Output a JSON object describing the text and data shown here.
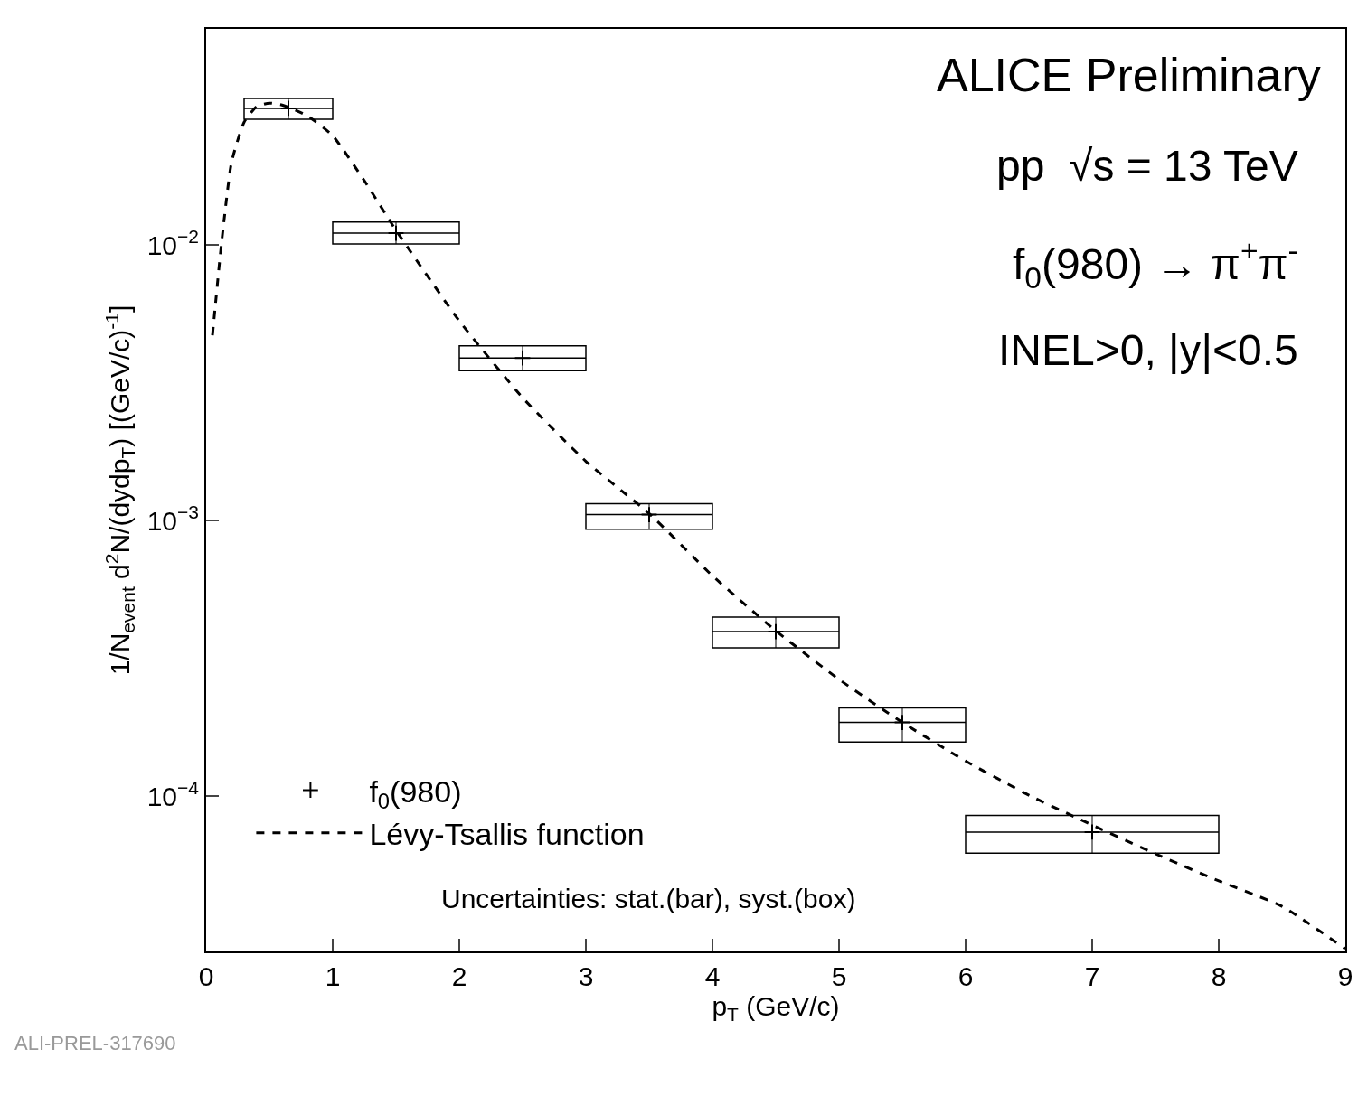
{
  "chart_data": {
    "type": "scatter",
    "xlabel": "p$_{T}$ (GeV/c)",
    "ylabel": "1/N$_{event}$ d$^{2}$N/(dydp$_{T}$) [(GeV/c)$^{-1}$]",
    "log": "y",
    "xlim": [
      0,
      9
    ],
    "ylim": [
      2.73e-05,
      0.0608
    ],
    "xticks": [
      0,
      1,
      2,
      3,
      4,
      5,
      6,
      7,
      8,
      9
    ],
    "yticks": [
      {
        "value": 0.01,
        "label": "10$^{−2}$"
      },
      {
        "value": 0.001,
        "label": "10$^{−3}$"
      },
      {
        "value": 0.0001,
        "label": "10$^{−4}$"
      }
    ],
    "legend": "bottom left",
    "series": [
      {
        "name": "f$_{0}$(980)",
        "color": "#000000",
        "marker": "cross",
        "x": [
          0.65,
          1.5,
          2.5,
          3.5,
          4.5,
          5.5,
          7
        ],
        "values": [
          0.0313,
          0.01103,
          0.00389,
          0.00105,
          0.000395,
          0.000185,
          7.4e-05
        ],
        "xerrors": [
          0.35,
          0.5,
          0.5,
          0.5,
          0.5,
          0.5,
          1
        ],
        "errors": [
          [
            0.0286,
            0.034
          ],
          [
            0.01008,
            0.0121
          ],
          [
            0.0035,
            0.0043
          ],
          [
            0.00093,
            0.00115
          ],
          [
            0.000345,
            0.000446
          ],
          [
            0.000157,
            0.000209
          ],
          [
            6.2e-05,
            8.5e-05
          ]
        ]
      },
      {
        "name": "Lévy-Tsallis function",
        "type": "line",
        "color": "#000000",
        "line_style": "dashed",
        "marker": "none",
        "x": [
          0.05,
          0.12,
          0.2,
          0.3,
          0.4,
          0.5,
          0.6,
          0.8,
          1.0,
          1.25,
          1.5,
          2.0,
          2.5,
          3.0,
          3.5,
          4.0,
          4.5,
          5.0,
          5.5,
          6.0,
          6.5,
          7.0,
          7.5,
          8.0,
          8.5,
          9.0
        ],
        "values": [
          0.0047,
          0.01,
          0.0199,
          0.0279,
          0.0318,
          0.0327,
          0.0322,
          0.0294,
          0.0249,
          0.0171,
          0.0113,
          0.0053,
          0.00279,
          0.00164,
          0.00106,
          0.00063,
          0.000398,
          0.000265,
          0.000185,
          0.000134,
          0.0001007,
          7.85e-05,
          6.17e-05,
          4.92e-05,
          3.98e-05,
          2.79e-05
        ]
      }
    ],
    "annotations": [
      "ALICE Preliminary",
      "pp  √s = 13 TeV",
      "f$_{0}$(980) → π$^{+}$π$^{-}$",
      "INEL>0, |y|<0.5",
      "Uncertainties: stat.(bar), syst.(box)",
      "ALI-PREL-317690"
    ]
  }
}
